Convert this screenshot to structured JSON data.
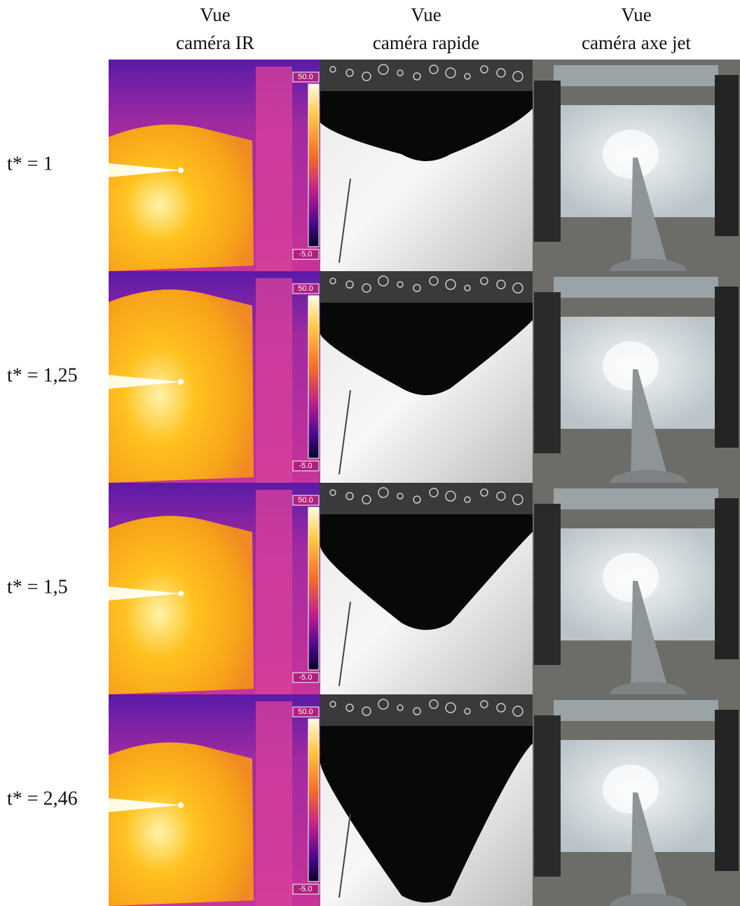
{
  "columns": [
    {
      "line1": "Vue",
      "line2": "caméra IR"
    },
    {
      "line1": "Vue",
      "line2": "caméra rapide"
    },
    {
      "line1": "Vue",
      "line2": "caméra axe jet"
    }
  ],
  "rows": [
    {
      "label": "t* = 1"
    },
    {
      "label": "t* = 1,25"
    },
    {
      "label": "t* = 1,5"
    },
    {
      "label": "t* = 2,46"
    }
  ],
  "ir_colorbar": {
    "max": "50.0",
    "min": "-5.0"
  }
}
